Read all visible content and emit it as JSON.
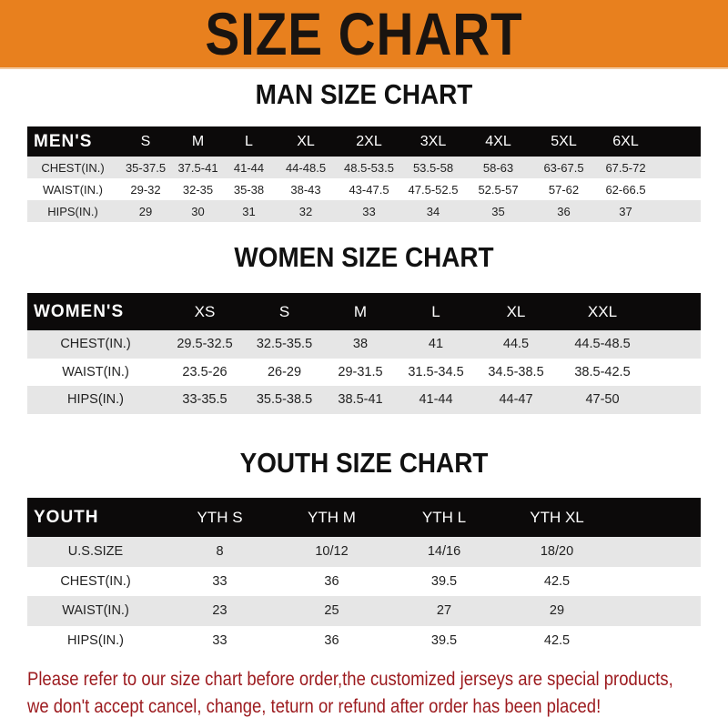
{
  "banner": {
    "title": "SIZE CHART",
    "color": "#e8801e"
  },
  "men": {
    "title": "MAN SIZE CHART",
    "header": [
      "MEN'S",
      "S",
      "M",
      "L",
      "XL",
      "2XL",
      "3XL",
      "4XL",
      "5XL",
      "6XL"
    ],
    "rows": [
      [
        "CHEST(IN.)",
        "35-37.5",
        "37.5-41",
        "41-44",
        "44-48.5",
        "48.5-53.5",
        "53.5-58",
        "58-63",
        "63-67.5",
        "67.5-72"
      ],
      [
        "WAIST(IN.)",
        "29-32",
        "32-35",
        "35-38",
        "38-43",
        "43-47.5",
        "47.5-52.5",
        "52.5-57",
        "57-62",
        "62-66.5"
      ],
      [
        "HIPS(IN.)",
        "29",
        "30",
        "31",
        "32",
        "33",
        "34",
        "35",
        "36",
        "37"
      ]
    ]
  },
  "women": {
    "title": "WOMEN SIZE CHART",
    "header": [
      "WOMEN'S",
      "XS",
      "S",
      "M",
      "L",
      "XL",
      "XXL"
    ],
    "rows": [
      [
        "CHEST(IN.)",
        "29.5-32.5",
        "32.5-35.5",
        "38",
        "41",
        "44.5",
        "44.5-48.5"
      ],
      [
        "WAIST(IN.)",
        "23.5-26",
        "26-29",
        "29-31.5",
        "31.5-34.5",
        "34.5-38.5",
        "38.5-42.5"
      ],
      [
        "HIPS(IN.)",
        "33-35.5",
        "35.5-38.5",
        "38.5-41",
        "41-44",
        "44-47",
        "47-50"
      ]
    ]
  },
  "youth": {
    "title": "YOUTH SIZE CHART",
    "header": [
      "YOUTH",
      "YTH S",
      "YTH M",
      "YTH L",
      "YTH XL"
    ],
    "rows": [
      [
        "U.S.SIZE",
        "8",
        "10/12",
        "14/16",
        "18/20"
      ],
      [
        "CHEST(IN.)",
        "33",
        "36",
        "39.5",
        "42.5"
      ],
      [
        "WAIST(IN.)",
        "23",
        "25",
        "27",
        "29"
      ],
      [
        "HIPS(IN.)",
        "33",
        "36",
        "39.5",
        "42.5"
      ]
    ]
  },
  "note": {
    "line1": "Please refer to our size chart before order,the customized jerseys are special products,",
    "line2": "we don't accept cancel, change, teturn or refund after order has been placed!",
    "color": "#9c1a1e"
  }
}
